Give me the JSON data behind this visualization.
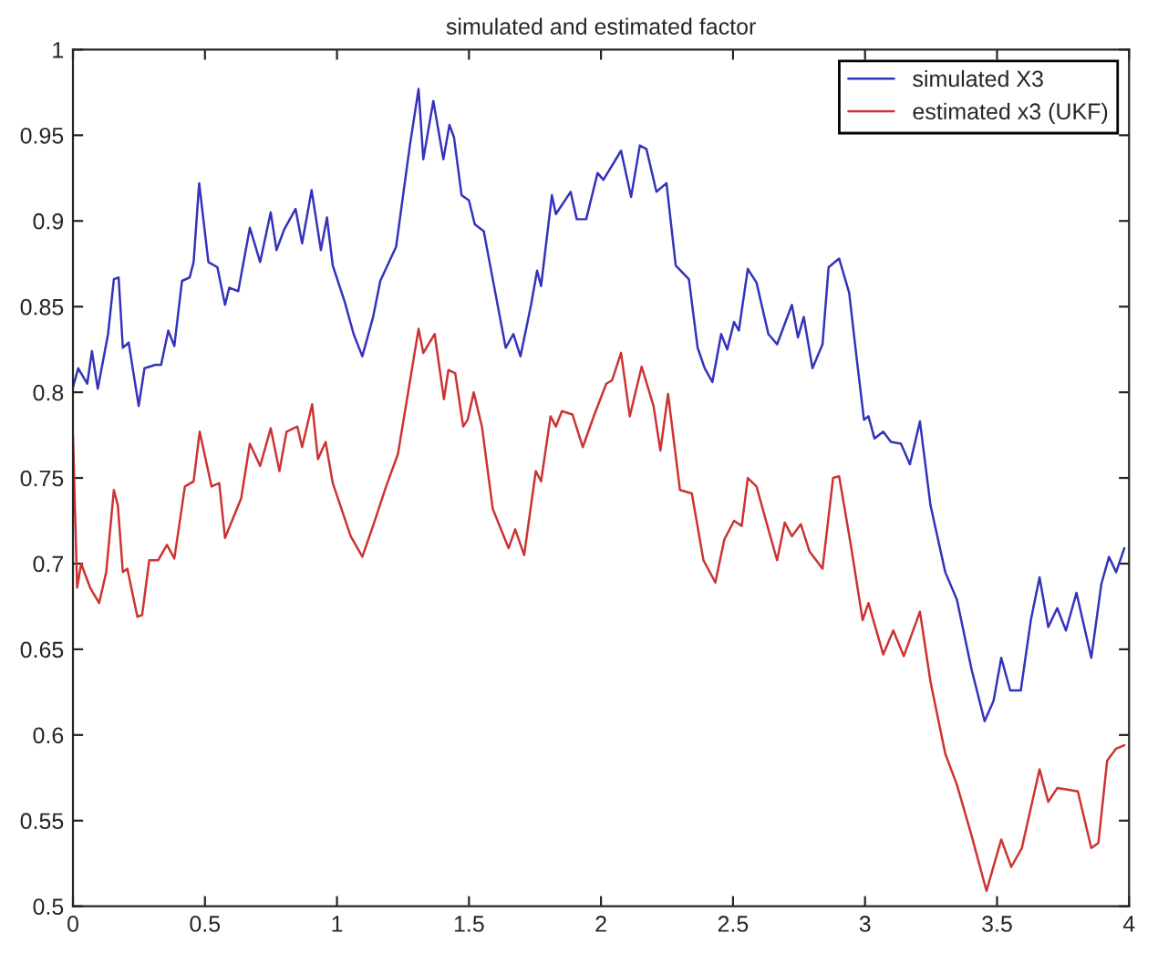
{
  "chart_data": {
    "type": "line",
    "title": "simulated and estimated factor",
    "xlim": [
      0,
      4
    ],
    "xticks": [
      0,
      0.5,
      1,
      1.5,
      2,
      2.5,
      3,
      3.5,
      4
    ],
    "ylim": [
      0.5,
      1
    ],
    "yticks": [
      0.5,
      0.55,
      0.6,
      0.65,
      0.7,
      0.75,
      0.8,
      0.85,
      0.9,
      0.95,
      1
    ],
    "grid": false,
    "legend": "top right",
    "marker": "none",
    "line_style": "solid",
    "series": [
      {
        "name": "simulated X3",
        "color": "#3333bb",
        "x": [
          0,
          0.02,
          0.054,
          0.072,
          0.094,
          0.133,
          0.155,
          0.173,
          0.189,
          0.211,
          0.249,
          0.271,
          0.312,
          0.334,
          0.361,
          0.384,
          0.413,
          0.442,
          0.457,
          0.478,
          0.513,
          0.547,
          0.576,
          0.592,
          0.626,
          0.67,
          0.709,
          0.749,
          0.771,
          0.8,
          0.843,
          0.868,
          0.904,
          0.939,
          0.962,
          0.984,
          1.029,
          1.063,
          1.096,
          1.137,
          1.164,
          1.224,
          1.276,
          1.309,
          1.327,
          1.365,
          1.403,
          1.426,
          1.443,
          1.472,
          1.5,
          1.522,
          1.556,
          1.59,
          1.639,
          1.668,
          1.695,
          1.735,
          1.758,
          1.773,
          1.814,
          1.829,
          1.885,
          1.908,
          1.944,
          1.987,
          2.009,
          2.076,
          2.114,
          2.147,
          2.172,
          2.21,
          2.248,
          2.283,
          2.333,
          2.366,
          2.393,
          2.422,
          2.455,
          2.478,
          2.504,
          2.522,
          2.556,
          2.589,
          2.634,
          2.667,
          2.723,
          2.746,
          2.768,
          2.801,
          2.839,
          2.862,
          2.902,
          2.94,
          2.969,
          2.996,
          3.013,
          3.036,
          3.069,
          3.098,
          3.136,
          3.17,
          3.208,
          3.248,
          3.304,
          3.348,
          3.404,
          3.453,
          3.487,
          3.516,
          3.55,
          3.59,
          3.628,
          3.661,
          3.694,
          3.728,
          3.761,
          3.801,
          3.857,
          3.895,
          3.924,
          3.951,
          3.982
        ],
        "values": [
          0.803,
          0.814,
          0.805,
          0.824,
          0.802,
          0.834,
          0.866,
          0.867,
          0.826,
          0.829,
          0.792,
          0.814,
          0.816,
          0.816,
          0.836,
          0.827,
          0.865,
          0.867,
          0.876,
          0.922,
          0.876,
          0.873,
          0.851,
          0.861,
          0.859,
          0.896,
          0.876,
          0.905,
          0.883,
          0.895,
          0.907,
          0.887,
          0.918,
          0.883,
          0.902,
          0.874,
          0.853,
          0.834,
          0.821,
          0.844,
          0.865,
          0.885,
          0.944,
          0.977,
          0.936,
          0.97,
          0.936,
          0.956,
          0.949,
          0.915,
          0.912,
          0.898,
          0.894,
          0.866,
          0.826,
          0.834,
          0.821,
          0.851,
          0.871,
          0.862,
          0.915,
          0.904,
          0.917,
          0.901,
          0.901,
          0.928,
          0.924,
          0.941,
          0.914,
          0.944,
          0.942,
          0.917,
          0.922,
          0.874,
          0.866,
          0.826,
          0.814,
          0.806,
          0.834,
          0.825,
          0.841,
          0.836,
          0.872,
          0.864,
          0.834,
          0.828,
          0.851,
          0.832,
          0.844,
          0.814,
          0.828,
          0.873,
          0.878,
          0.858,
          0.819,
          0.784,
          0.786,
          0.773,
          0.777,
          0.771,
          0.77,
          0.758,
          0.783,
          0.734,
          0.695,
          0.679,
          0.638,
          0.608,
          0.62,
          0.645,
          0.626,
          0.626,
          0.667,
          0.692,
          0.663,
          0.674,
          0.661,
          0.683,
          0.645,
          0.688,
          0.704,
          0.695,
          0.709
        ]
      },
      {
        "name": "estimated x3 (UKF)",
        "color": "#cc3333",
        "x": [
          0,
          0.009,
          0.016,
          0.031,
          0.065,
          0.099,
          0.126,
          0.155,
          0.17,
          0.189,
          0.206,
          0.244,
          0.262,
          0.289,
          0.323,
          0.356,
          0.384,
          0.424,
          0.457,
          0.48,
          0.525,
          0.554,
          0.576,
          0.637,
          0.67,
          0.709,
          0.749,
          0.782,
          0.809,
          0.85,
          0.868,
          0.906,
          0.928,
          0.957,
          0.984,
          1.052,
          1.096,
          1.141,
          1.186,
          1.231,
          1.309,
          1.327,
          1.37,
          1.405,
          1.422,
          1.448,
          1.478,
          1.495,
          1.518,
          1.549,
          1.59,
          1.65,
          1.675,
          1.709,
          1.753,
          1.773,
          1.809,
          1.829,
          1.852,
          1.892,
          1.931,
          1.975,
          2.02,
          2.042,
          2.076,
          2.109,
          2.154,
          2.199,
          2.225,
          2.254,
          2.299,
          2.344,
          2.388,
          2.433,
          2.467,
          2.504,
          2.533,
          2.556,
          2.589,
          2.634,
          2.667,
          2.696,
          2.723,
          2.757,
          2.79,
          2.839,
          2.879,
          2.902,
          2.946,
          2.991,
          3.013,
          3.069,
          3.107,
          3.147,
          3.208,
          3.248,
          3.304,
          3.348,
          3.404,
          3.46,
          3.516,
          3.554,
          3.594,
          3.661,
          3.694,
          3.728,
          3.772,
          3.806,
          3.857,
          3.884,
          3.917,
          3.951,
          3.982
        ],
        "values": [
          0.775,
          0.724,
          0.686,
          0.7,
          0.686,
          0.677,
          0.695,
          0.743,
          0.734,
          0.695,
          0.697,
          0.669,
          0.67,
          0.702,
          0.702,
          0.711,
          0.703,
          0.745,
          0.748,
          0.777,
          0.745,
          0.747,
          0.715,
          0.738,
          0.77,
          0.757,
          0.779,
          0.754,
          0.777,
          0.78,
          0.768,
          0.793,
          0.761,
          0.771,
          0.747,
          0.716,
          0.704,
          0.724,
          0.745,
          0.764,
          0.837,
          0.823,
          0.834,
          0.796,
          0.813,
          0.811,
          0.78,
          0.784,
          0.8,
          0.78,
          0.732,
          0.709,
          0.72,
          0.705,
          0.754,
          0.748,
          0.786,
          0.78,
          0.789,
          0.787,
          0.768,
          0.787,
          0.805,
          0.807,
          0.823,
          0.786,
          0.815,
          0.792,
          0.766,
          0.799,
          0.743,
          0.741,
          0.702,
          0.689,
          0.714,
          0.725,
          0.722,
          0.75,
          0.745,
          0.72,
          0.702,
          0.724,
          0.716,
          0.723,
          0.707,
          0.697,
          0.75,
          0.751,
          0.711,
          0.667,
          0.677,
          0.647,
          0.661,
          0.646,
          0.672,
          0.631,
          0.589,
          0.571,
          0.541,
          0.509,
          0.539,
          0.523,
          0.534,
          0.58,
          0.561,
          0.569,
          0.568,
          0.567,
          0.534,
          0.537,
          0.585,
          0.592,
          0.594
        ]
      }
    ]
  }
}
